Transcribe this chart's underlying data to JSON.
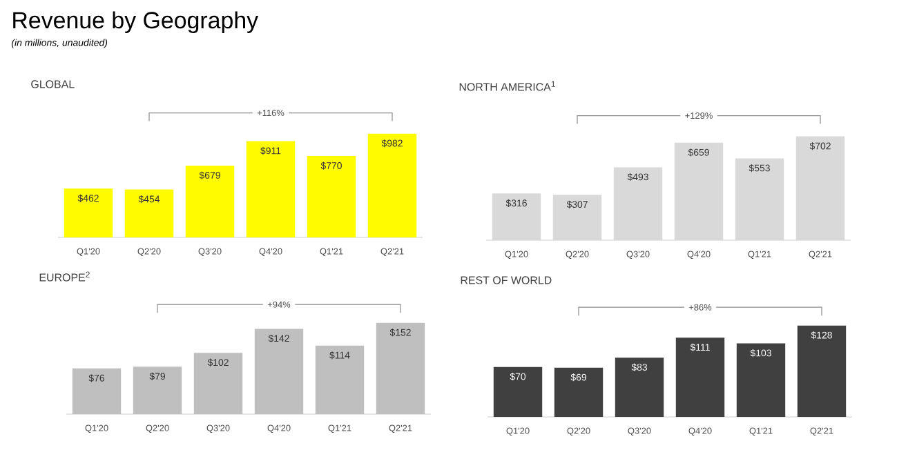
{
  "chart_data": [
    {
      "type": "other",
      "title": "Revenue by Geography",
      "subtitle": "(in millions, unaudited)"
    },
    {
      "type": "bar",
      "title": "GLOBAL",
      "categories": [
        "Q1'20",
        "Q2'20",
        "Q3'20",
        "Q4'20",
        "Q1'21",
        "Q2'21"
      ],
      "values": [
        462,
        454,
        679,
        911,
        770,
        982
      ],
      "value_labels": [
        "$462",
        "$454",
        "$679",
        "$911",
        "$770",
        "$982"
      ],
      "color": "#fffc00",
      "annotations": [
        "+116%"
      ]
    },
    {
      "type": "bar",
      "title": "NORTH AMERICA$^{1}$",
      "categories": [
        "Q1'20",
        "Q2'20",
        "Q3'20",
        "Q4'20",
        "Q1'21",
        "Q2'21"
      ],
      "values": [
        316,
        307,
        493,
        659,
        553,
        702
      ],
      "value_labels": [
        "$316",
        "$307",
        "$493",
        "$659",
        "$553",
        "$702"
      ],
      "color": "#d9d9d9",
      "annotations": [
        "+129%"
      ]
    },
    {
      "type": "bar",
      "title": "EUROPE$^{2}$",
      "categories": [
        "Q1'20",
        "Q2'20",
        "Q3'20",
        "Q4'20",
        "Q1'21",
        "Q2'21"
      ],
      "values": [
        76,
        79,
        102,
        142,
        114,
        152
      ],
      "value_labels": [
        "$76",
        "$79",
        "$102",
        "$142",
        "$114",
        "$152"
      ],
      "color": "#bfbfbf",
      "annotations": [
        "+94%"
      ]
    },
    {
      "type": "bar",
      "title": "REST OF WORLD",
      "categories": [
        "Q1'20",
        "Q2'20",
        "Q3'20",
        "Q4'20",
        "Q1'21",
        "Q2'21"
      ],
      "values": [
        70,
        69,
        83,
        111,
        103,
        128
      ],
      "value_labels": [
        "$70",
        "$69",
        "$83",
        "$111",
        "$103",
        "$128"
      ],
      "color": "#404040",
      "annotations": [
        "+86%"
      ]
    }
  ]
}
